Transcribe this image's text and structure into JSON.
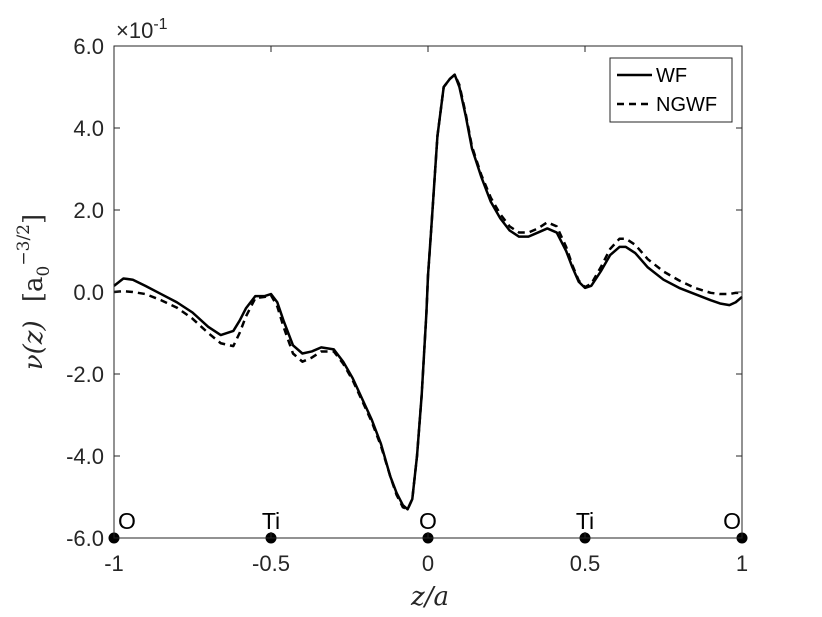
{
  "chart_data": {
    "type": "line",
    "xlabel": "z/a",
    "ylabel": "ν(z)  [a0^-3/2]",
    "ylabel_parts": {
      "main": "ν(z)",
      "unit_base": "a",
      "unit_sub": "0",
      "unit_sup": "−3/2"
    },
    "y_exponent_label": "×10",
    "y_exponent_power": "-1",
    "xlim": [
      -1,
      1
    ],
    "ylim": [
      -6.0,
      6.0
    ],
    "x_ticks": [
      -1,
      -0.5,
      0,
      0.5,
      1
    ],
    "x_tick_labels": [
      "-1",
      "-0.5",
      "0",
      "0.5",
      "1"
    ],
    "y_ticks": [
      -6,
      -4,
      -2,
      0,
      2,
      4,
      6
    ],
    "y_tick_labels": [
      "-6.0",
      "-4.0",
      "-2.0",
      "0.0",
      "2.0",
      "4.0",
      "6.0"
    ],
    "grid": false,
    "legend_position": "top-right",
    "series": [
      {
        "name": "WF",
        "style": "solid",
        "color": "#000000",
        "x": [
          -1,
          -0.97,
          -0.94,
          -0.9,
          -0.85,
          -0.8,
          -0.75,
          -0.7,
          -0.66,
          -0.62,
          -0.6,
          -0.58,
          -0.55,
          -0.52,
          -0.5,
          -0.48,
          -0.46,
          -0.43,
          -0.4,
          -0.37,
          -0.34,
          -0.3,
          -0.27,
          -0.24,
          -0.21,
          -0.18,
          -0.15,
          -0.12,
          -0.1,
          -0.08,
          -0.065,
          -0.05,
          -0.035,
          -0.02,
          -0.005,
          0,
          0.01,
          0.03,
          0.05,
          0.07,
          0.085,
          0.1,
          0.12,
          0.14,
          0.17,
          0.2,
          0.23,
          0.26,
          0.29,
          0.32,
          0.35,
          0.38,
          0.41,
          0.44,
          0.46,
          0.48,
          0.5,
          0.52,
          0.55,
          0.58,
          0.61,
          0.63,
          0.66,
          0.7,
          0.75,
          0.8,
          0.85,
          0.9,
          0.93,
          0.96,
          0.98,
          1
        ],
        "y": [
          0.15,
          0.33,
          0.3,
          0.15,
          -0.05,
          -0.25,
          -0.5,
          -0.85,
          -1.05,
          -0.95,
          -0.7,
          -0.4,
          -0.1,
          -0.1,
          -0.05,
          -0.25,
          -0.7,
          -1.3,
          -1.5,
          -1.45,
          -1.35,
          -1.4,
          -1.7,
          -2.1,
          -2.6,
          -3.1,
          -3.7,
          -4.5,
          -4.9,
          -5.2,
          -5.3,
          -5.05,
          -4.0,
          -2.5,
          -0.5,
          0.4,
          1.5,
          3.8,
          5.0,
          5.2,
          5.3,
          5.0,
          4.3,
          3.5,
          2.8,
          2.2,
          1.8,
          1.5,
          1.35,
          1.35,
          1.45,
          1.55,
          1.45,
          1.0,
          0.6,
          0.25,
          0.1,
          0.15,
          0.5,
          0.9,
          1.1,
          1.1,
          0.95,
          0.6,
          0.3,
          0.1,
          -0.05,
          -0.2,
          -0.28,
          -0.32,
          -0.25,
          -0.12
        ]
      },
      {
        "name": "NGWF",
        "style": "dashed",
        "color": "#000000",
        "x": [
          -1,
          -0.97,
          -0.94,
          -0.9,
          -0.85,
          -0.8,
          -0.75,
          -0.7,
          -0.66,
          -0.62,
          -0.6,
          -0.58,
          -0.55,
          -0.52,
          -0.5,
          -0.48,
          -0.46,
          -0.43,
          -0.4,
          -0.37,
          -0.34,
          -0.3,
          -0.27,
          -0.24,
          -0.21,
          -0.18,
          -0.15,
          -0.12,
          -0.1,
          -0.08,
          -0.065,
          -0.05,
          -0.035,
          -0.02,
          -0.005,
          0,
          0.01,
          0.03,
          0.05,
          0.07,
          0.085,
          0.1,
          0.12,
          0.14,
          0.17,
          0.2,
          0.23,
          0.26,
          0.29,
          0.32,
          0.35,
          0.38,
          0.41,
          0.44,
          0.46,
          0.48,
          0.5,
          0.52,
          0.55,
          0.58,
          0.61,
          0.63,
          0.66,
          0.7,
          0.75,
          0.8,
          0.85,
          0.9,
          0.93,
          0.96,
          0.98,
          1
        ],
        "y": [
          0.0,
          0.02,
          0.0,
          -0.05,
          -0.2,
          -0.38,
          -0.65,
          -1.0,
          -1.25,
          -1.32,
          -1.0,
          -0.6,
          -0.15,
          -0.12,
          -0.08,
          -0.35,
          -0.85,
          -1.5,
          -1.7,
          -1.6,
          -1.45,
          -1.45,
          -1.75,
          -2.15,
          -2.65,
          -3.15,
          -3.75,
          -4.5,
          -4.95,
          -5.25,
          -5.3,
          -5.05,
          -4.0,
          -2.5,
          -0.5,
          0.4,
          1.5,
          3.8,
          5.0,
          5.2,
          5.3,
          5.05,
          4.35,
          3.55,
          2.85,
          2.3,
          1.9,
          1.6,
          1.45,
          1.45,
          1.55,
          1.7,
          1.6,
          1.1,
          0.65,
          0.28,
          0.12,
          0.2,
          0.6,
          1.05,
          1.3,
          1.3,
          1.15,
          0.8,
          0.5,
          0.28,
          0.1,
          -0.02,
          -0.05,
          -0.05,
          -0.02,
          -0.02
        ]
      }
    ],
    "atoms": [
      {
        "label": "O",
        "x": -1
      },
      {
        "label": "Ti",
        "x": -0.5
      },
      {
        "label": "O",
        "x": 0
      },
      {
        "label": "Ti",
        "x": 0.5
      },
      {
        "label": "O",
        "x": 1
      }
    ]
  }
}
